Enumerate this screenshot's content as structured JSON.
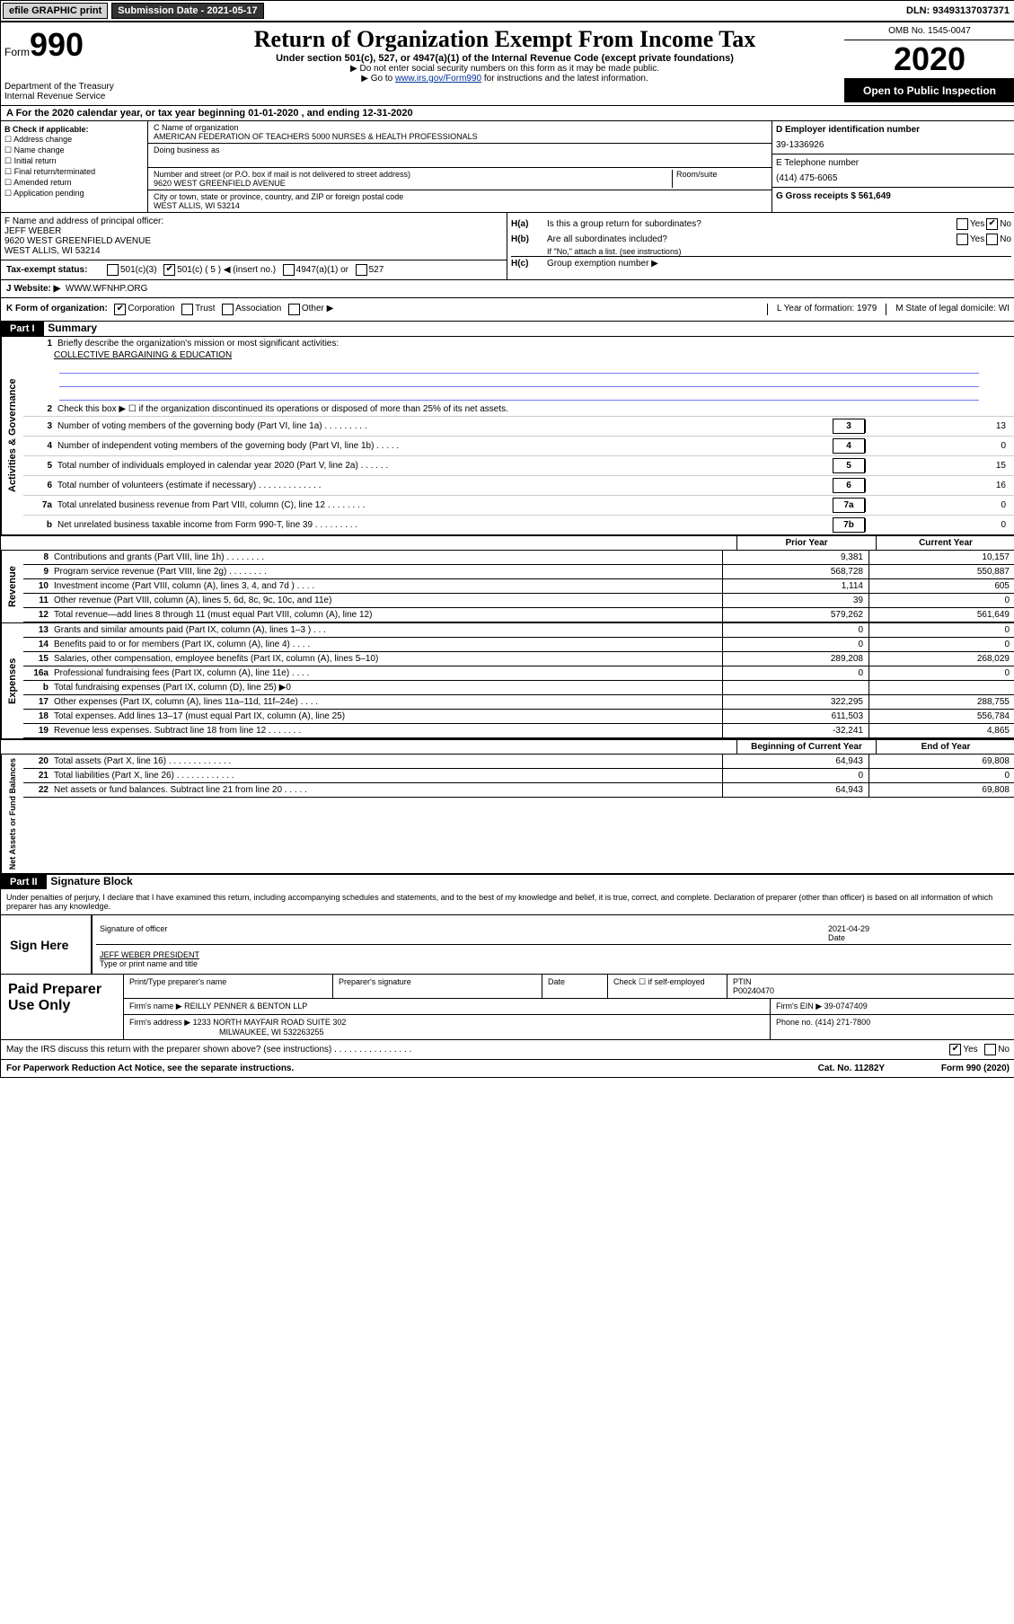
{
  "topbar": {
    "efile": "efile GRAPHIC print",
    "submission": "Submission Date - 2021-05-17",
    "dln": "DLN: 93493137037371"
  },
  "header": {
    "form_prefix": "Form",
    "form_num": "990",
    "dept": "Department of the Treasury\nInternal Revenue Service",
    "title": "Return of Organization Exempt From Income Tax",
    "subtitle": "Under section 501(c), 527, or 4947(a)(1) of the Internal Revenue Code (except private foundations)",
    "note1": "▶ Do not enter social security numbers on this form as it may be made public.",
    "note2_pre": "▶ Go to ",
    "note2_link": "www.irs.gov/Form990",
    "note2_post": " for instructions and the latest information.",
    "omb": "OMB No. 1545-0047",
    "year": "2020",
    "open": "Open to Public Inspection"
  },
  "rowA": "A For the 2020 calendar year, or tax year beginning 01-01-2020    , and ending 12-31-2020",
  "colB": {
    "label": "B Check if applicable:",
    "items": [
      "Address change",
      "Name change",
      "Initial return",
      "Final return/terminated",
      "Amended return",
      "Application pending"
    ]
  },
  "colC": {
    "name_lbl": "C Name of organization",
    "name": "AMERICAN FEDERATION OF TEACHERS 5000 NURSES & HEALTH PROFESSIONALS",
    "dba_lbl": "Doing business as",
    "street_lbl": "Number and street (or P.O. box if mail is not delivered to street address)",
    "street": "9620 WEST GREENFIELD AVENUE",
    "room_lbl": "Room/suite",
    "city_lbl": "City or town, state or province, country, and ZIP or foreign postal code",
    "city": "WEST ALLIS, WI  53214"
  },
  "colD": {
    "ein_lbl": "D Employer identification number",
    "ein": "39-1336926",
    "phone_lbl": "E Telephone number",
    "phone": "(414) 475-6065",
    "gross_lbl": "G Gross receipts $ 561,649"
  },
  "officer": {
    "f_lbl": "F  Name and address of principal officer:",
    "name": "JEFF WEBER",
    "addr1": "9620 WEST GREENFIELD AVENUE",
    "addr2": "WEST ALLIS, WI  53214"
  },
  "h": {
    "a": "Is this a group return for subordinates?",
    "b": "Are all subordinates included?",
    "b_note": "If \"No,\" attach a list. (see instructions)",
    "c": "Group exemption number ▶"
  },
  "taxexempt": {
    "lbl": "Tax-exempt status:",
    "c5": "501(c) ( 5 ) ◀ (insert no.)",
    "c3": "501(c)(3)",
    "a1": "4947(a)(1) or",
    "s527": "527"
  },
  "website": {
    "lbl": "J   Website: ▶",
    "val": "WWW.WFNHP.ORG"
  },
  "k": {
    "lbl": "K Form of organization:",
    "corp": "Corporation",
    "trust": "Trust",
    "assoc": "Association",
    "other": "Other ▶",
    "l": "L Year of formation: 1979",
    "m": "M State of legal domicile: WI"
  },
  "part1": {
    "hdr": "Part I",
    "title": "Summary",
    "sect1_lbl": "Activities & Governance",
    "l1": "Briefly describe the organization's mission or most significant activities:",
    "l1_val": "COLLECTIVE BARGAINING & EDUCATION",
    "l2": "Check this box ▶ ☐  if the organization discontinued its operations or disposed of more than 25% of its net assets.",
    "lines_num": [
      {
        "n": "3",
        "t": "Number of voting members of the governing body (Part VI, line 1a)   .    .    .    .    .    .    .    .    .",
        "box": "3",
        "v": "13"
      },
      {
        "n": "4",
        "t": "Number of independent voting members of the governing body (Part VI, line 1b)   .    .    .    .    .",
        "box": "4",
        "v": "0"
      },
      {
        "n": "5",
        "t": "Total number of individuals employed in calendar year 2020 (Part V, line 2a)   .    .    .    .    .    .",
        "box": "5",
        "v": "15"
      },
      {
        "n": "6",
        "t": "Total number of volunteers (estimate if necessary)   .    .    .    .    .    .    .    .    .    .    .    .    .",
        "box": "6",
        "v": "16"
      },
      {
        "n": "7a",
        "t": "Total unrelated business revenue from Part VIII, column (C), line 12   .    .    .    .    .    .    .    .",
        "box": "7a",
        "v": "0"
      },
      {
        "n": "b",
        "t": "Net unrelated business taxable income from Form 990-T, line 39   .    .    .    .    .    .    .    .    .",
        "box": "7b",
        "v": "0"
      }
    ],
    "col_hdr1": "Prior Year",
    "col_hdr2": "Current Year",
    "revenue_lbl": "Revenue",
    "revenue": [
      {
        "n": "8",
        "t": "Contributions and grants (Part VIII, line 1h)   .    .    .    .    .    .    .    .",
        "v1": "9,381",
        "v2": "10,157"
      },
      {
        "n": "9",
        "t": "Program service revenue (Part VIII, line 2g)   .    .    .    .    .    .    .    .",
        "v1": "568,728",
        "v2": "550,887"
      },
      {
        "n": "10",
        "t": "Investment income (Part VIII, column (A), lines 3, 4, and 7d )   .    .    .    .",
        "v1": "1,114",
        "v2": "605"
      },
      {
        "n": "11",
        "t": "Other revenue (Part VIII, column (A), lines 5, 6d, 8c, 9c, 10c, and 11e)",
        "v1": "39",
        "v2": "0"
      },
      {
        "n": "12",
        "t": "Total revenue—add lines 8 through 11 (must equal Part VIII, column (A), line 12)",
        "v1": "579,262",
        "v2": "561,649"
      }
    ],
    "expenses_lbl": "Expenses",
    "expenses": [
      {
        "n": "13",
        "t": "Grants and similar amounts paid (Part IX, column (A), lines 1–3 )   .    .    .",
        "v1": "0",
        "v2": "0"
      },
      {
        "n": "14",
        "t": "Benefits paid to or for members (Part IX, column (A), line 4)   .    .    .    .",
        "v1": "0",
        "v2": "0"
      },
      {
        "n": "15",
        "t": "Salaries, other compensation, employee benefits (Part IX, column (A), lines 5–10)",
        "v1": "289,208",
        "v2": "268,029"
      },
      {
        "n": "16a",
        "t": "Professional fundraising fees (Part IX, column (A), line 11e)   .    .    .    .",
        "v1": "0",
        "v2": "0"
      },
      {
        "n": "b",
        "t": "Total fundraising expenses (Part IX, column (D), line 25)  ▶0",
        "v1": "",
        "v2": ""
      },
      {
        "n": "17",
        "t": "Other expenses (Part IX, column (A), lines 11a–11d, 11f–24e)   .    .    .    .",
        "v1": "322,295",
        "v2": "288,755"
      },
      {
        "n": "18",
        "t": "Total expenses. Add lines 13–17 (must equal Part IX, column (A), line 25)",
        "v1": "611,503",
        "v2": "556,784"
      },
      {
        "n": "19",
        "t": "Revenue less expenses. Subtract line 18 from line 12   .    .    .    .    .    .    .",
        "v1": "-32,241",
        "v2": "4,865"
      }
    ],
    "net_lbl": "Net Assets or Fund Balances",
    "net_hdr1": "Beginning of Current Year",
    "net_hdr2": "End of Year",
    "net": [
      {
        "n": "20",
        "t": "Total assets (Part X, line 16)   .    .    .    .    .    .    .    .    .    .    .    .    .",
        "v1": "64,943",
        "v2": "69,808"
      },
      {
        "n": "21",
        "t": "Total liabilities (Part X, line 26)   .    .    .    .    .    .    .    .    .    .    .    .",
        "v1": "0",
        "v2": "0"
      },
      {
        "n": "22",
        "t": "Net assets or fund balances. Subtract line 21 from line 20   .    .    .    .    .",
        "v1": "64,943",
        "v2": "69,808"
      }
    ]
  },
  "part2": {
    "hdr": "Part II",
    "title": "Signature Block",
    "decl": "Under penalties of perjury, I declare that I have examined this return, including accompanying schedules and statements, and to the best of my knowledge and belief, it is true, correct, and complete. Declaration of preparer (other than officer) is based on all information of which preparer has any knowledge.",
    "sign_here": "Sign Here",
    "sig_of": "Signature of officer",
    "date": "2021-04-29",
    "date_lbl": "Date",
    "name": "JEFF WEBER PRESIDENT",
    "name_lbl": "Type or print name and title",
    "paid": "Paid Preparer Use Only",
    "p_name_lbl": "Print/Type preparer's name",
    "p_sig_lbl": "Preparer's signature",
    "p_date_lbl": "Date",
    "self_emp": "Check ☐ if self-employed",
    "ptin_lbl": "PTIN",
    "ptin": "P00240470",
    "firm_lbl": "Firm's name    ▶",
    "firm": "REILLY PENNER & BENTON LLP",
    "ein_lbl": "Firm's EIN ▶",
    "ein": "39-0747409",
    "addr_lbl": "Firm's address ▶",
    "addr": "1233 NORTH MAYFAIR ROAD SUITE 302",
    "addr2": "MILWAUKEE, WI  532263255",
    "phone_lbl": "Phone no.",
    "phone": "(414) 271-7800",
    "discuss": "May the IRS discuss this return with the preparer shown above? (see instructions)   .    .    .    .    .    .    .    .    .    .    .    .    .    .    .    .",
    "yes": "Yes",
    "no": "No"
  },
  "footer": {
    "paperwork": "For Paperwork Reduction Act Notice, see the separate instructions.",
    "cat": "Cat. No. 11282Y",
    "form": "Form 990 (2020)"
  }
}
